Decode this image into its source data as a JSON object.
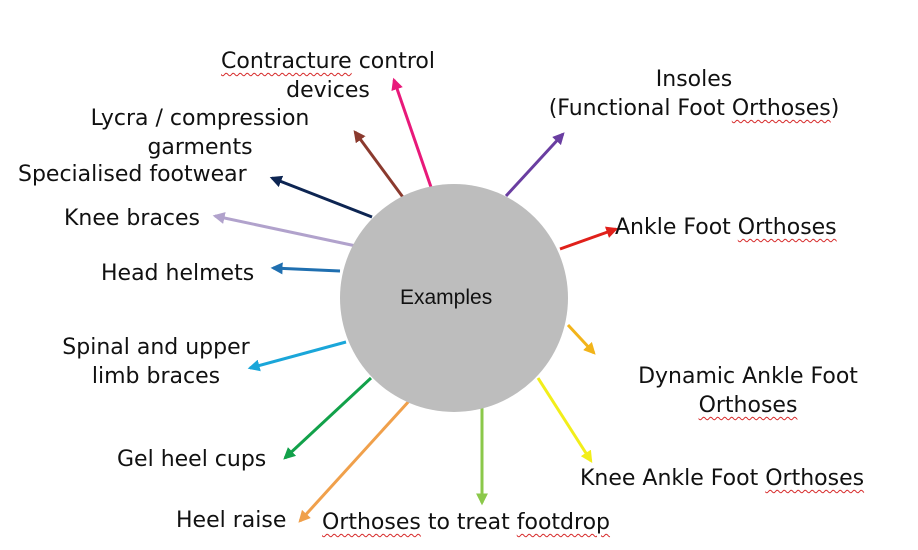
{
  "center": {
    "label": "Examples",
    "fill": "#bdbdbd"
  },
  "items": [
    {
      "id": "contracture",
      "lines": [
        [
          {
            "t": "Contracture",
            "spell": true
          },
          {
            "t": " control"
          }
        ],
        [
          {
            "t": "devices"
          }
        ]
      ],
      "color": "#e8197a"
    },
    {
      "id": "lycra",
      "lines": [
        [
          {
            "t": "Lycra / compression"
          }
        ],
        [
          {
            "t": "garments"
          }
        ]
      ],
      "color": "#8b3a2e"
    },
    {
      "id": "footwear",
      "lines": [
        [
          {
            "t": "Specialised footwear"
          }
        ]
      ],
      "color": "#0d2552"
    },
    {
      "id": "knee-braces",
      "lines": [
        [
          {
            "t": "Knee braces"
          }
        ]
      ],
      "color": "#b1a2cc"
    },
    {
      "id": "head-helmets",
      "lines": [
        [
          {
            "t": "Head helmets"
          }
        ]
      ],
      "color": "#1f6fb0"
    },
    {
      "id": "spinal",
      "lines": [
        [
          {
            "t": "Spinal and upper"
          }
        ],
        [
          {
            "t": "limb braces"
          }
        ]
      ],
      "color": "#1aa6d9"
    },
    {
      "id": "gel",
      "lines": [
        [
          {
            "t": "Gel heel cups"
          }
        ]
      ],
      "color": "#12a14a"
    },
    {
      "id": "heel-raise",
      "lines": [
        [
          {
            "t": "Heel raise"
          }
        ]
      ],
      "color": "#f0a04b"
    },
    {
      "id": "footdrop",
      "lines": [
        [
          {
            "t": "Orthoses",
            "spell": true
          },
          {
            "t": " to treat "
          },
          {
            "t": "footdrop",
            "spell": true
          }
        ]
      ],
      "color": "#8bc84a"
    },
    {
      "id": "kafo",
      "lines": [
        [
          {
            "t": "Knee Ankle Foot "
          },
          {
            "t": "Orthoses",
            "spell": true
          }
        ]
      ],
      "color": "#f2ee1a"
    },
    {
      "id": "dafo",
      "lines": [
        [
          {
            "t": "Dynamic Ankle Foot"
          }
        ],
        [
          {
            "t": "Orthoses",
            "spell": true
          }
        ]
      ],
      "color": "#f2b41a"
    },
    {
      "id": "afo",
      "lines": [
        [
          {
            "t": "Ankle Foot "
          },
          {
            "t": "Orthoses",
            "spell": true
          }
        ]
      ],
      "color": "#e0201a"
    },
    {
      "id": "insoles",
      "lines": [
        [
          {
            "t": "Insoles"
          }
        ],
        [
          {
            "t": "(Functional Foot "
          },
          {
            "t": "Orthoses",
            "spell": true
          },
          {
            "t": ")"
          }
        ]
      ],
      "color": "#6a3ea1"
    }
  ]
}
